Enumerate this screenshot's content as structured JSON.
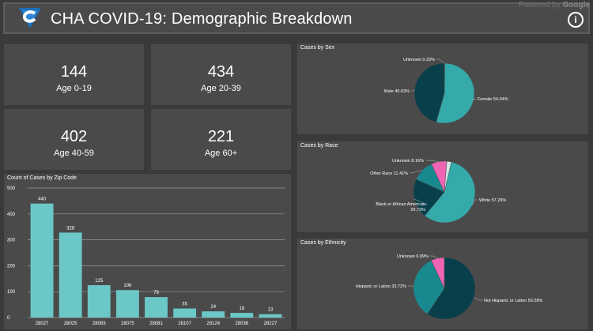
{
  "header": {
    "title": "CHA COVID-19: Demographic Breakdown",
    "powered_prefix": "Powered by",
    "powered_brand": "Google",
    "info_icon": "info-icon"
  },
  "kpis": [
    {
      "value": "144",
      "label": "Age 0-19"
    },
    {
      "value": "434",
      "label": "Age 20-39"
    },
    {
      "value": "402",
      "label": "Age 40-59"
    },
    {
      "value": "221",
      "label": "Age 60+"
    }
  ],
  "colors": {
    "bar": "#6cc7c7",
    "teal": "#35aaaa",
    "dark_teal": "#083f4a",
    "mid_teal": "#18898f",
    "pink": "#f064b4",
    "light": "#cde8e8"
  },
  "chart_data": [
    {
      "type": "bar",
      "title": "Count of Cases by Zip Code",
      "categories": [
        "28027",
        "28025",
        "28083",
        "28075",
        "28081",
        "28107",
        "28124",
        "28036",
        "28227"
      ],
      "values": [
        440,
        328,
        125,
        106,
        79,
        35,
        24,
        18,
        13
      ],
      "ylim": [
        0,
        500
      ],
      "yticks": [
        0,
        100,
        200,
        300,
        400,
        500
      ],
      "grid": true
    },
    {
      "type": "pie",
      "title": "Cases by Sex",
      "slices": [
        {
          "label": "Unknown 0.33%",
          "value": 0.33,
          "color": "#cde8e8"
        },
        {
          "label": "Female 54.04%",
          "value": 54.04,
          "color": "#35aaaa"
        },
        {
          "label": "Male 45.63%",
          "value": 45.63,
          "color": "#083f4a"
        }
      ]
    },
    {
      "type": "pie",
      "title": "Cases by Race",
      "slices": [
        {
          "label": "White 57.29%",
          "value": 57.29,
          "color": "#35aaaa"
        },
        {
          "label": "Black or African American 20.73%",
          "value": 20.73,
          "color": "#083f4a"
        },
        {
          "label": "Other Race 11.41%",
          "value": 11.41,
          "color": "#18898f"
        },
        {
          "label": "Unknown 8.16%",
          "value": 8.16,
          "color": "#f064b4"
        },
        {
          "label": "",
          "value": 2.41,
          "color": "#cde8e8"
        }
      ]
    },
    {
      "type": "pie",
      "title": "Cases by Ethnicity",
      "slices": [
        {
          "label": "Not Hispanic or Latino 59.28%",
          "value": 59.28,
          "color": "#083f4a"
        },
        {
          "label": "Hispanic or Latino 33.72%",
          "value": 33.72,
          "color": "#18898f"
        },
        {
          "label": "Unknown 6.99%",
          "value": 6.99,
          "color": "#f064b4"
        }
      ]
    }
  ]
}
